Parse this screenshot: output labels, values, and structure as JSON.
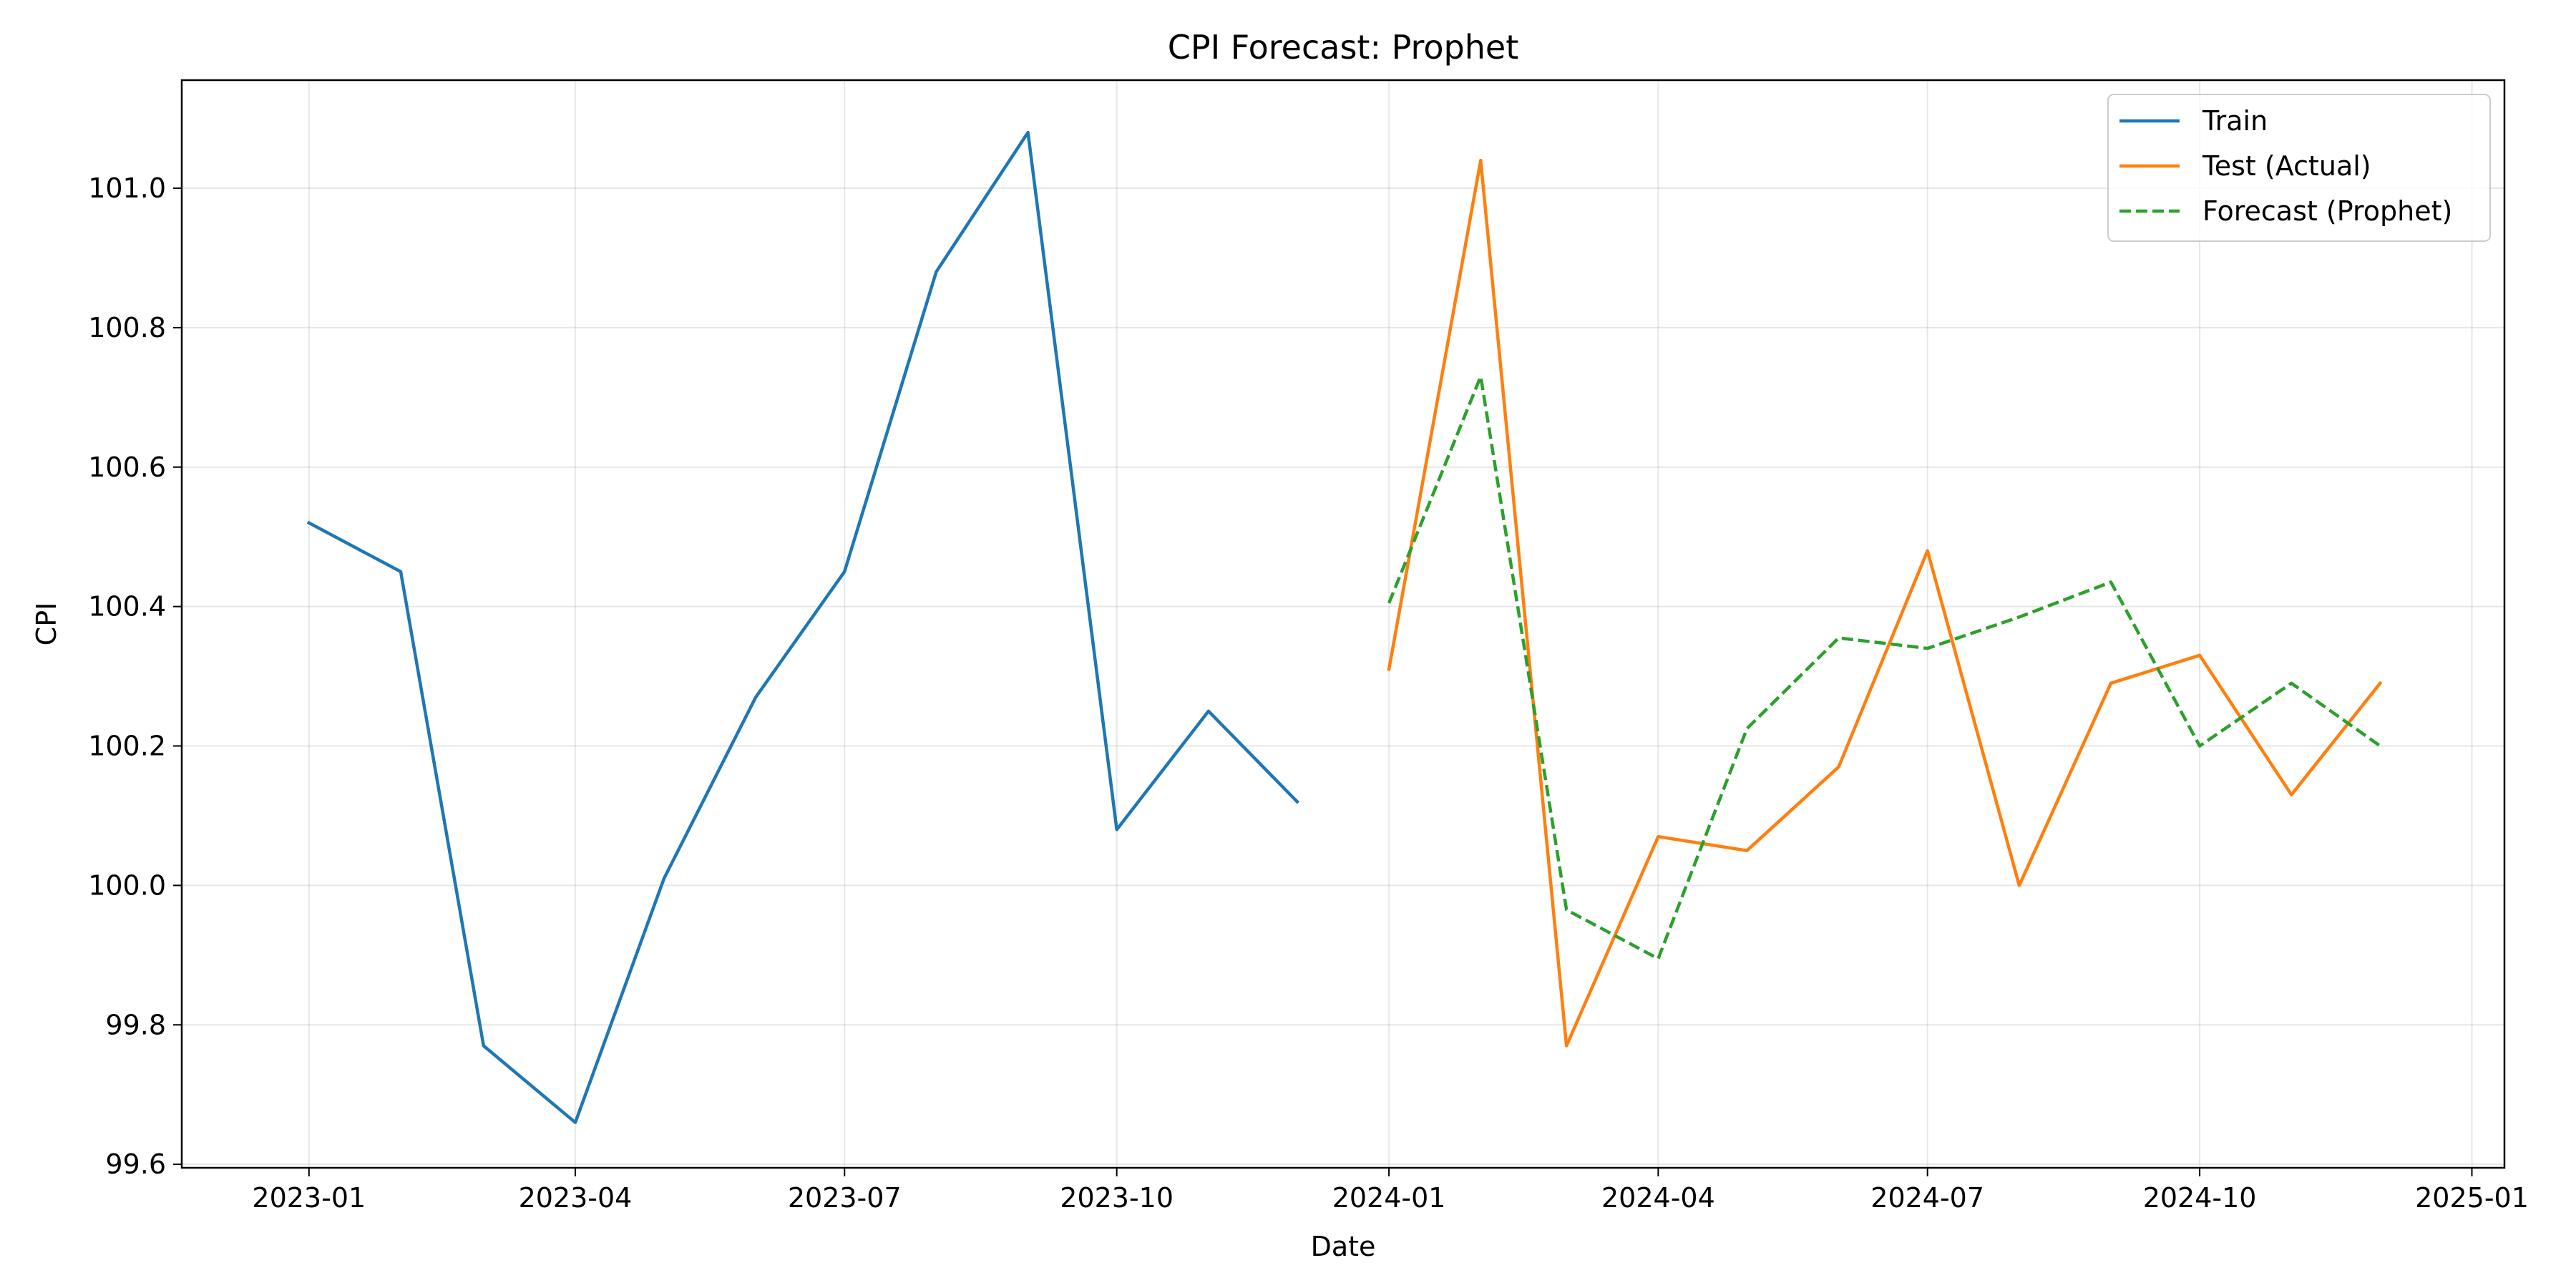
{
  "chart_data": {
    "type": "line",
    "title": "CPI Forecast: Prophet",
    "xlabel": "Date",
    "ylabel": "CPI",
    "x_ticks": [
      "2023-01",
      "2023-04",
      "2023-07",
      "2023-10",
      "2024-01",
      "2024-04",
      "2024-07",
      "2024-10",
      "2025-01"
    ],
    "y_ticks": [
      "99.6",
      "99.8",
      "100.0",
      "100.2",
      "100.4",
      "100.6",
      "100.8",
      "101.0"
    ],
    "xlim": [
      "2022-11-19",
      "2025-01-12"
    ],
    "ylim": [
      99.595,
      101.155
    ],
    "grid": true,
    "legend_position": "upper right",
    "series": [
      {
        "name": "Train",
        "color": "#1f77b4",
        "style": "solid",
        "x": [
          "2023-01-01",
          "2023-02-01",
          "2023-03-01",
          "2023-04-01",
          "2023-05-01",
          "2023-06-01",
          "2023-07-01",
          "2023-08-01",
          "2023-09-01",
          "2023-10-01",
          "2023-11-01",
          "2023-12-01"
        ],
        "y": [
          100.52,
          100.45,
          99.77,
          99.66,
          100.01,
          100.27,
          100.45,
          100.88,
          101.08,
          100.08,
          100.25,
          100.12
        ]
      },
      {
        "name": "Test (Actual)",
        "color": "#ff7f0e",
        "style": "solid",
        "x": [
          "2024-01-01",
          "2024-02-01",
          "2024-03-01",
          "2024-04-01",
          "2024-05-01",
          "2024-06-01",
          "2024-07-01",
          "2024-08-01",
          "2024-09-01",
          "2024-10-01",
          "2024-11-01",
          "2024-12-01"
        ],
        "y": [
          100.31,
          101.04,
          99.77,
          100.07,
          100.05,
          100.17,
          100.48,
          100.0,
          100.29,
          100.33,
          100.13,
          100.29
        ]
      },
      {
        "name": "Forecast (Prophet)",
        "color": "#2ca02c",
        "style": "dashed",
        "x": [
          "2024-01-01",
          "2024-02-01",
          "2024-03-01",
          "2024-04-01",
          "2024-05-01",
          "2024-06-01",
          "2024-07-01",
          "2024-08-01",
          "2024-09-01",
          "2024-10-01",
          "2024-11-01",
          "2024-12-01"
        ],
        "y": [
          100.405,
          100.73,
          99.965,
          99.895,
          100.225,
          100.355,
          100.34,
          100.385,
          100.435,
          100.2,
          100.29,
          100.2
        ]
      }
    ]
  }
}
